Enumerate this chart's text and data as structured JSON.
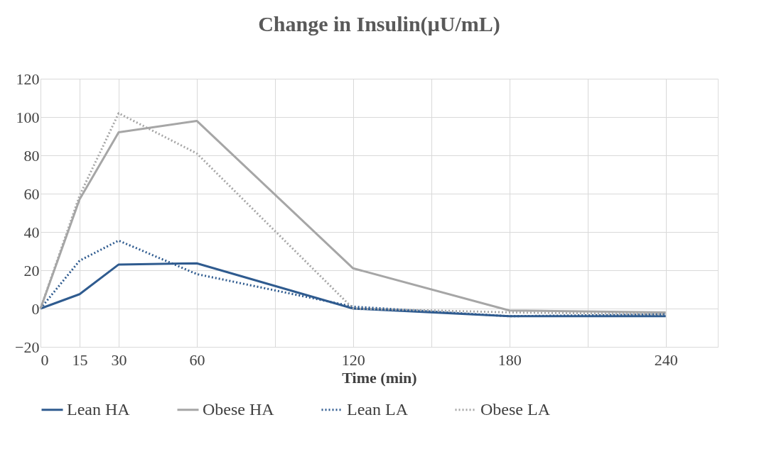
{
  "chart_data": {
    "type": "line",
    "title": "Change in Insulin(µU/mL)",
    "xlabel": "Time (min)",
    "x": [
      0,
      15,
      30,
      60,
      120,
      180,
      240
    ],
    "series": [
      {
        "name": "Lean HA",
        "color": "#2f5b8f",
        "line_style": "solid",
        "values": [
          0,
          7.5,
          23,
          23.6,
          0,
          -4,
          -4
        ]
      },
      {
        "name": "Obese HA",
        "color": "#a6a6a6",
        "line_style": "solid",
        "values": [
          0,
          57,
          92,
          98,
          21,
          -1,
          -2
        ]
      },
      {
        "name": "Lean LA",
        "color": "#2f5b8f",
        "line_style": "dotted",
        "values": [
          0,
          25,
          35.5,
          18,
          1,
          -4,
          -3
        ]
      },
      {
        "name": "Obese LA",
        "color": "#a6a6a6",
        "line_style": "dotted",
        "values": [
          0,
          59,
          102,
          81,
          0,
          -2,
          -3
        ]
      }
    ],
    "xlim": [
      0,
      260
    ],
    "xticks": [
      0,
      15,
      30,
      60,
      {
        "value": 90,
        "label": null
      },
      120,
      {
        "value": 150,
        "label": null
      },
      180,
      {
        "value": 210,
        "label": null
      },
      240
    ],
    "ylim": [
      -20,
      120
    ],
    "yticks": [
      -20,
      0,
      20,
      40,
      60,
      80,
      100,
      120
    ],
    "grid": true,
    "legend": "bottom",
    "marker": "none"
  }
}
